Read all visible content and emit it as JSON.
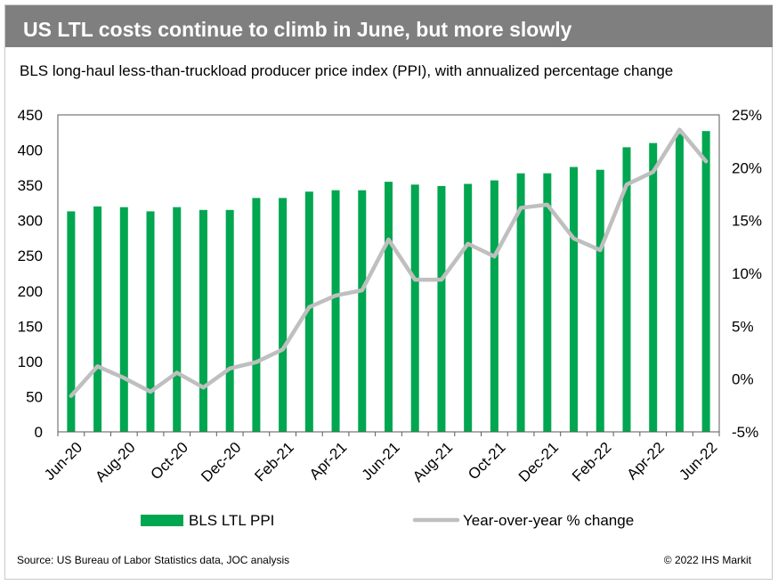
{
  "title": "US LTL costs continue to climb in June, but more slowly",
  "subtitle": "BLS long-haul less-than-truckload producer price index (PPI), with annualized percentage change",
  "source": "Source: US Bureau of Labor Statistics data, JOC analysis",
  "copyright": "© 2022 IHS Markit",
  "colors": {
    "bar": "#00a650",
    "line": "#bfbfbf",
    "header": "#7f7f7f"
  },
  "chart_data": {
    "type": "bar",
    "categories": [
      "Jun-20",
      "Jul-20",
      "Aug-20",
      "Sep-20",
      "Oct-20",
      "Nov-20",
      "Dec-20",
      "Jan-21",
      "Feb-21",
      "Mar-21",
      "Apr-21",
      "May-21",
      "Jun-21",
      "Jul-21",
      "Aug-21",
      "Sep-21",
      "Oct-21",
      "Nov-21",
      "Dec-21",
      "Jan-22",
      "Feb-22",
      "Mar-22",
      "Apr-22",
      "May-22",
      "Jun-22"
    ],
    "x_tick_labels": [
      "Jun-20",
      "Aug-20",
      "Oct-20",
      "Dec-20",
      "Feb-21",
      "Apr-21",
      "Jun-21",
      "Aug-21",
      "Oct-21",
      "Dec-21",
      "Feb-22",
      "Apr-22",
      "Jun-22"
    ],
    "series": [
      {
        "name": "BLS LTL PPI",
        "type": "bar",
        "axis": "left",
        "values": [
          313,
          320,
          319,
          313,
          319,
          315,
          315,
          332,
          332,
          341,
          343,
          343,
          355,
          351,
          349,
          352,
          357,
          367,
          367,
          376,
          372,
          404,
          410,
          423,
          427
        ]
      },
      {
        "name": "Year-over-year % change",
        "type": "line",
        "axis": "right",
        "values": [
          -1.6,
          1.2,
          0.1,
          -1.2,
          0.6,
          -0.8,
          1.0,
          1.6,
          2.8,
          6.8,
          7.9,
          8.4,
          13.2,
          9.4,
          9.4,
          12.8,
          11.6,
          16.2,
          16.5,
          13.3,
          12.2,
          18.4,
          19.6,
          23.6,
          20.6
        ]
      }
    ],
    "left_axis": {
      "ylim": [
        0,
        450
      ],
      "ticks": [
        "0",
        "50",
        "100",
        "150",
        "200",
        "250",
        "300",
        "350",
        "400",
        "450"
      ]
    },
    "right_axis": {
      "ylim": [
        -5,
        25
      ],
      "ticks": [
        "-5%",
        "0%",
        "5%",
        "10%",
        "15%",
        "20%",
        "25%"
      ]
    },
    "legend": {
      "placement": "bottom"
    },
    "grid": false
  }
}
